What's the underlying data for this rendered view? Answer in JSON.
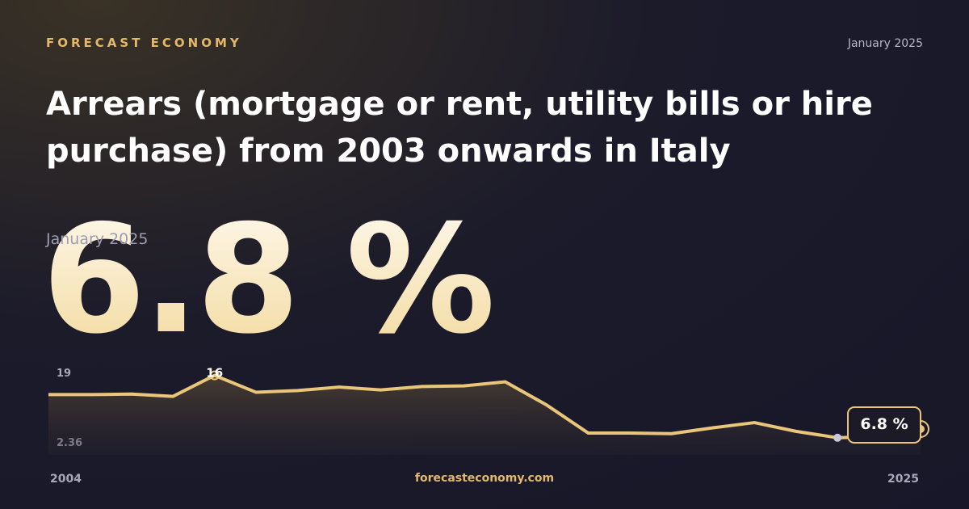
{
  "brand": "FORECAST ECONOMY",
  "date": "January 2025",
  "title": "Arrears (mortgage or rent, utility bills or hire purchase) from 2003 onwards in Italy",
  "headline": {
    "value_text": "6.8 %",
    "date": "January 2025"
  },
  "footer": "forecasteconomy.com",
  "chart_data": {
    "type": "line",
    "x": [
      2004,
      2005,
      2006,
      2007,
      2008,
      2009,
      2010,
      2011,
      2012,
      2013,
      2014,
      2015,
      2016,
      2017,
      2018,
      2019,
      2020,
      2021,
      2022,
      2023,
      2024,
      2025
    ],
    "xlim": [
      2004,
      2025
    ],
    "xticks": [
      2004,
      2025
    ],
    "ylim": [
      2.36,
      19
    ],
    "yticks": [
      2.36,
      19
    ],
    "series": [
      {
        "color": "#e9c67a",
        "values": [
          12.7,
          12.7,
          12.8,
          12.4,
          16,
          13.1,
          13.4,
          14,
          13.5,
          14.1,
          14.2,
          14.9,
          10.9,
          6.1,
          6.1,
          6,
          7,
          7.9,
          6.4,
          5.3,
          5.5,
          6.8
        ],
        "value_labels": [
          null,
          null,
          null,
          null,
          null,
          null,
          null,
          null,
          null,
          null,
          null,
          null,
          null,
          null,
          null,
          null,
          null,
          null,
          null,
          null,
          null,
          "6.8 %"
        ]
      }
    ]
  }
}
